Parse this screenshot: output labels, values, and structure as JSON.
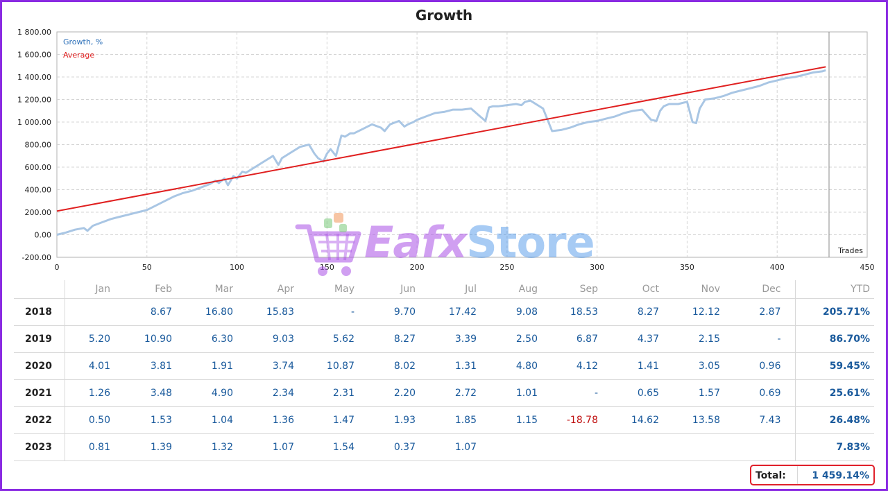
{
  "chart_data": {
    "type": "line",
    "title": "Growth",
    "xlabel": "Trades",
    "ylabel": "",
    "xlim": [
      0,
      450
    ],
    "ylim": [
      -200,
      1800
    ],
    "x_ticks": [
      "0",
      "50",
      "100",
      "150",
      "200",
      "250",
      "300",
      "350",
      "400",
      "450"
    ],
    "y_ticks": [
      "-200.00",
      "0.00",
      "200.00",
      "400.00",
      "600.00",
      "800.00",
      "1 000.00",
      "1 200.00",
      "1 400.00",
      "1 600.00",
      "1 800.00"
    ],
    "grid": true,
    "legend_position": "top-left",
    "series": [
      {
        "name": "Growth, %",
        "color": "#a9c6e4",
        "x": [
          0,
          5,
          10,
          15,
          17,
          20,
          25,
          30,
          35,
          40,
          45,
          50,
          55,
          60,
          65,
          70,
          75,
          80,
          85,
          88,
          90,
          93,
          95,
          98,
          100,
          103,
          105,
          110,
          115,
          120,
          123,
          125,
          130,
          135,
          140,
          143,
          145,
          148,
          150,
          152,
          155,
          158,
          160,
          163,
          165,
          170,
          175,
          180,
          182,
          185,
          190,
          193,
          195,
          198,
          200,
          205,
          210,
          215,
          220,
          225,
          230,
          235,
          238,
          240,
          242,
          245,
          250,
          255,
          258,
          260,
          263,
          265,
          270,
          275,
          280,
          285,
          290,
          295,
          300,
          305,
          310,
          315,
          320,
          325,
          330,
          333,
          335,
          337,
          340,
          345,
          350,
          353,
          355,
          357,
          360,
          365,
          370,
          375,
          380,
          385,
          390,
          395,
          400,
          405,
          410,
          415,
          420,
          425,
          427
        ],
        "y": [
          0,
          20,
          45,
          60,
          35,
          80,
          110,
          140,
          160,
          180,
          200,
          220,
          260,
          300,
          340,
          370,
          390,
          420,
          450,
          480,
          460,
          500,
          440,
          520,
          500,
          560,
          550,
          600,
          650,
          700,
          620,
          680,
          730,
          780,
          800,
          720,
          680,
          650,
          720,
          760,
          700,
          880,
          870,
          900,
          900,
          940,
          980,
          950,
          920,
          980,
          1010,
          960,
          980,
          1000,
          1020,
          1050,
          1080,
          1090,
          1110,
          1110,
          1120,
          1050,
          1010,
          1130,
          1140,
          1140,
          1150,
          1160,
          1150,
          1180,
          1190,
          1170,
          1120,
          920,
          930,
          950,
          980,
          1000,
          1010,
          1030,
          1050,
          1080,
          1100,
          1110,
          1020,
          1010,
          1100,
          1140,
          1160,
          1160,
          1180,
          1000,
          990,
          1120,
          1200,
          1210,
          1230,
          1260,
          1280,
          1300,
          1320,
          1350,
          1370,
          1390,
          1400,
          1420,
          1440,
          1450,
          1460
        ]
      },
      {
        "name": "Average",
        "color": "#e02020",
        "x": [
          0,
          427
        ],
        "y": [
          210,
          1490
        ]
      }
    ]
  },
  "watermark": {
    "text_part1": "Eafx",
    "text_part2": "Store"
  },
  "table": {
    "headers": [
      "",
      "Jan",
      "Feb",
      "Mar",
      "Apr",
      "May",
      "Jun",
      "Jul",
      "Aug",
      "Sep",
      "Oct",
      "Nov",
      "Dec",
      "YTD"
    ],
    "rows": [
      {
        "year": "2018",
        "months": [
          "",
          "8.67",
          "16.80",
          "15.83",
          "-",
          "9.70",
          "17.42",
          "9.08",
          "18.53",
          "8.27",
          "12.12",
          "2.87"
        ],
        "ytd": "205.71%"
      },
      {
        "year": "2019",
        "months": [
          "5.20",
          "10.90",
          "6.30",
          "9.03",
          "5.62",
          "8.27",
          "3.39",
          "2.50",
          "6.87",
          "4.37",
          "2.15",
          "-"
        ],
        "ytd": "86.70%"
      },
      {
        "year": "2020",
        "months": [
          "4.01",
          "3.81",
          "1.91",
          "3.74",
          "10.87",
          "8.02",
          "1.31",
          "4.80",
          "4.12",
          "1.41",
          "3.05",
          "0.96"
        ],
        "ytd": "59.45%"
      },
      {
        "year": "2021",
        "months": [
          "1.26",
          "3.48",
          "4.90",
          "2.34",
          "2.31",
          "2.20",
          "2.72",
          "1.01",
          "-",
          "0.65",
          "1.57",
          "0.69"
        ],
        "ytd": "25.61%"
      },
      {
        "year": "2022",
        "months": [
          "0.50",
          "1.53",
          "1.04",
          "1.36",
          "1.47",
          "1.93",
          "1.85",
          "1.15",
          "-18.78",
          "14.62",
          "13.58",
          "7.43"
        ],
        "ytd": "26.48%"
      },
      {
        "year": "2023",
        "months": [
          "0.81",
          "1.39",
          "1.32",
          "1.07",
          "1.54",
          "0.37",
          "1.07",
          "",
          "",
          "",
          "",
          ""
        ],
        "ytd": "7.83%"
      }
    ],
    "total_label": "Total:",
    "total_value": "1 459.14%"
  }
}
